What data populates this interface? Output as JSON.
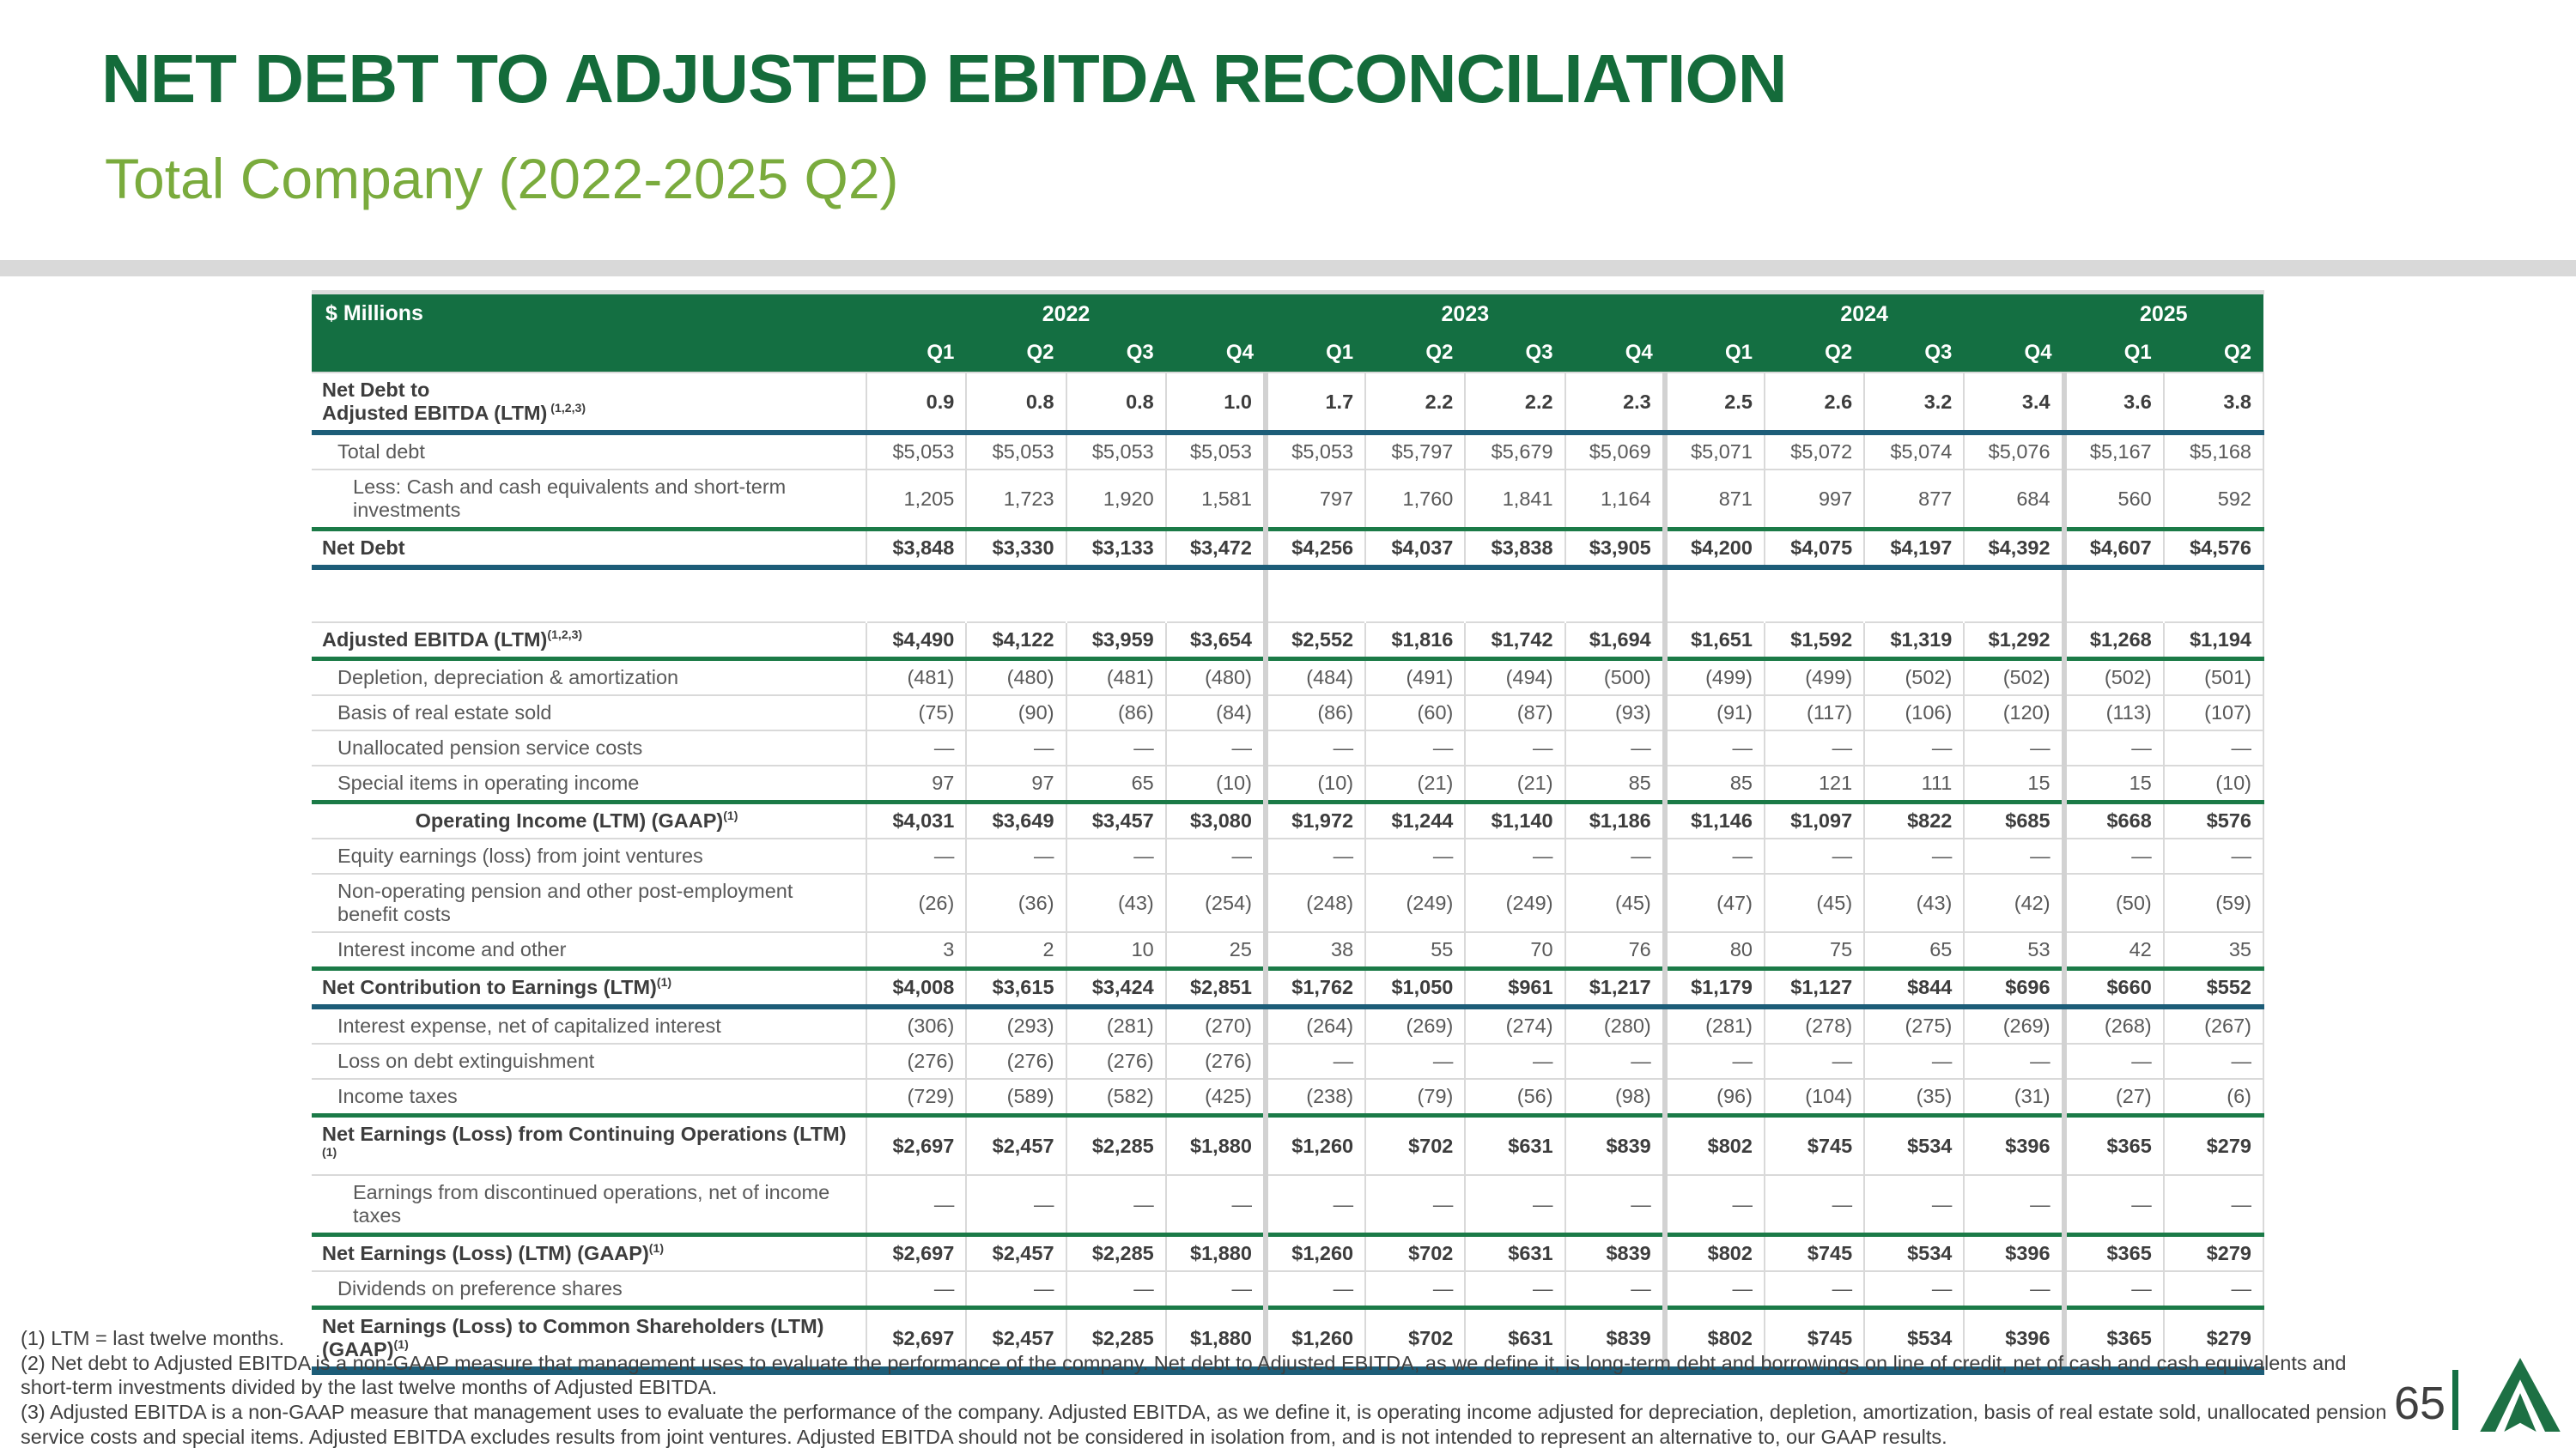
{
  "slide": {
    "title": "NET DEBT TO ADJUSTED EBITDA RECONCILIATION",
    "subtitle": "Total Company (2022-2025 Q2)",
    "page_number": "65"
  },
  "colors": {
    "title_green": "#146b3a",
    "subtitle_green": "#7aab3d",
    "header_green": "#146f42",
    "rule_green": "#1b7a47",
    "rule_teal": "#1d5d78",
    "grid_gray": "#d9d9d9",
    "divider_gray": "#d9d9d9",
    "logo_green": "#1d7044",
    "text_dark": "#3d3d3d",
    "text_gray": "#595959"
  },
  "table": {
    "units_label": "$ Millions",
    "year_groups": [
      {
        "label": "2022",
        "cols": 4
      },
      {
        "label": "2023",
        "cols": 4
      },
      {
        "label": "2024",
        "cols": 4
      },
      {
        "label": "2025",
        "cols": 2
      }
    ],
    "quarters": [
      "Q1",
      "Q2",
      "Q3",
      "Q4",
      "Q1",
      "Q2",
      "Q3",
      "Q4",
      "Q1",
      "Q2",
      "Q3",
      "Q4",
      "Q1",
      "Q2"
    ],
    "rows": [
      {
        "name": "row-net-debt-to-adjusted-ebitda",
        "lines": [
          "Net Debt to",
          "Adjusted EBITDA (LTM)"
        ],
        "sup": " (1,2,3)",
        "style": "bold",
        "indent": 0,
        "bb": "teal",
        "values": [
          "0.9",
          "0.8",
          "0.8",
          "1.0",
          "1.7",
          "2.2",
          "2.2",
          "2.3",
          "2.5",
          "2.6",
          "3.2",
          "3.4",
          "3.6",
          "3.8"
        ]
      },
      {
        "name": "row-total-debt",
        "lines": [
          "Total debt"
        ],
        "indent": 1,
        "values": [
          "$5,053",
          "$5,053",
          "$5,053",
          "$5,053",
          "$5,053",
          "$5,797",
          "$5,679",
          "$5,069",
          "$5,071",
          "$5,072",
          "$5,074",
          "$5,076",
          "$5,167",
          "$5,168"
        ]
      },
      {
        "name": "row-less-cash",
        "lines": [
          "Less: Cash and cash equivalents and short-term",
          "investments"
        ],
        "indent": 2,
        "values": [
          "1,205",
          "1,723",
          "1,920",
          "1,581",
          "797",
          "1,760",
          "1,841",
          "1,164",
          "871",
          "997",
          "877",
          "684",
          "560",
          "592"
        ]
      },
      {
        "name": "row-net-debt",
        "lines": [
          "Net Debt"
        ],
        "style": "bold",
        "indent": 0,
        "bt": "green",
        "bb": "teal",
        "values": [
          "$3,848",
          "$3,330",
          "$3,133",
          "$3,472",
          "$4,256",
          "$4,037",
          "$3,838",
          "$3,905",
          "$4,200",
          "$4,075",
          "$4,197",
          "$4,392",
          "$4,607",
          "$4,576"
        ]
      },
      {
        "name": "row-spacer",
        "spacer": true,
        "lines": [],
        "values": [
          "",
          "",
          "",
          "",
          "",
          "",
          "",
          "",
          "",
          "",
          "",
          "",
          "",
          ""
        ]
      },
      {
        "name": "row-adjusted-ebitda",
        "lines": [
          "Adjusted EBITDA (LTM)"
        ],
        "sup": "(1,2,3)",
        "style": "bold",
        "indent": 0,
        "bb": "green",
        "values": [
          "$4,490",
          "$4,122",
          "$3,959",
          "$3,654",
          "$2,552",
          "$1,816",
          "$1,742",
          "$1,694",
          "$1,651",
          "$1,592",
          "$1,319",
          "$1,292",
          "$1,268",
          "$1,194"
        ]
      },
      {
        "name": "row-depletion-depreciation-amortization",
        "lines": [
          "Depletion, depreciation & amortization"
        ],
        "indent": 1,
        "values": [
          "(481)",
          "(480)",
          "(481)",
          "(480)",
          "(484)",
          "(491)",
          "(494)",
          "(500)",
          "(499)",
          "(499)",
          "(502)",
          "(502)",
          "(502)",
          "(501)"
        ]
      },
      {
        "name": "row-basis-of-real-estate-sold",
        "lines": [
          "Basis of real estate sold"
        ],
        "indent": 1,
        "values": [
          "(75)",
          "(90)",
          "(86)",
          "(84)",
          "(86)",
          "(60)",
          "(87)",
          "(93)",
          "(91)",
          "(117)",
          "(106)",
          "(120)",
          "(113)",
          "(107)"
        ]
      },
      {
        "name": "row-unallocated-pension-service-costs",
        "lines": [
          "Unallocated pension service costs"
        ],
        "indent": 1,
        "values": [
          "—",
          "—",
          "—",
          "—",
          "—",
          "—",
          "—",
          "—",
          "—",
          "—",
          "—",
          "—",
          "—",
          "—"
        ]
      },
      {
        "name": "row-special-items",
        "lines": [
          "Special items in operating income"
        ],
        "indent": 1,
        "values": [
          "97",
          "97",
          "65",
          "(10)",
          "(10)",
          "(21)",
          "(21)",
          "85",
          "85",
          "121",
          "111",
          "15",
          "15",
          "(10)"
        ]
      },
      {
        "name": "row-operating-income",
        "lines": [
          "Operating Income (LTM) (GAAP)"
        ],
        "sup": "(1)",
        "style": "center",
        "indent": 0,
        "bt": "green",
        "values": [
          "$4,031",
          "$3,649",
          "$3,457",
          "$3,080",
          "$1,972",
          "$1,244",
          "$1,140",
          "$1,186",
          "$1,146",
          "$1,097",
          "$822",
          "$685",
          "$668",
          "$576"
        ]
      },
      {
        "name": "row-equity-earnings-joint-ventures",
        "lines": [
          "Equity earnings (loss) from joint ventures"
        ],
        "indent": 1,
        "values": [
          "—",
          "—",
          "—",
          "—",
          "—",
          "—",
          "—",
          "—",
          "—",
          "—",
          "—",
          "—",
          "—",
          "—"
        ]
      },
      {
        "name": "row-non-operating-pension",
        "lines": [
          "Non-operating pension and other post-employment",
          "benefit costs"
        ],
        "indent": 1,
        "values": [
          "(26)",
          "(36)",
          "(43)",
          "(254)",
          "(248)",
          "(249)",
          "(249)",
          "(45)",
          "(47)",
          "(45)",
          "(43)",
          "(42)",
          "(50)",
          "(59)"
        ]
      },
      {
        "name": "row-interest-income-and-other",
        "lines": [
          "Interest income and other"
        ],
        "indent": 1,
        "values": [
          "3",
          "2",
          "10",
          "25",
          "38",
          "55",
          "70",
          "76",
          "80",
          "75",
          "65",
          "53",
          "42",
          "35"
        ]
      },
      {
        "name": "row-net-contribution-to-earnings",
        "lines": [
          "Net Contribution to Earnings (LTM)"
        ],
        "sup": "(1)",
        "style": "bold",
        "indent": 0,
        "bt": "green",
        "bb": "teal",
        "values": [
          "$4,008",
          "$3,615",
          "$3,424",
          "$2,851",
          "$1,762",
          "$1,050",
          "$961",
          "$1,217",
          "$1,179",
          "$1,127",
          "$844",
          "$696",
          "$660",
          "$552"
        ]
      },
      {
        "name": "row-interest-expense",
        "lines": [
          "Interest expense, net of capitalized interest"
        ],
        "indent": 1,
        "values": [
          "(306)",
          "(293)",
          "(281)",
          "(270)",
          "(264)",
          "(269)",
          "(274)",
          "(280)",
          "(281)",
          "(278)",
          "(275)",
          "(269)",
          "(268)",
          "(267)"
        ]
      },
      {
        "name": "row-loss-on-debt-extinguishment",
        "lines": [
          "Loss on debt extinguishment"
        ],
        "indent": 1,
        "values": [
          "(276)",
          "(276)",
          "(276)",
          "(276)",
          "—",
          "—",
          "—",
          "—",
          "—",
          "—",
          "—",
          "—",
          "—",
          "—"
        ]
      },
      {
        "name": "row-income-taxes",
        "lines": [
          "Income taxes"
        ],
        "indent": 1,
        "values": [
          "(729)",
          "(589)",
          "(582)",
          "(425)",
          "(238)",
          "(79)",
          "(56)",
          "(98)",
          "(96)",
          "(104)",
          "(35)",
          "(31)",
          "(27)",
          "(6)"
        ]
      },
      {
        "name": "row-net-earnings-continuing-operations",
        "lines": [
          "Net Earnings (Loss) from Continuing Operations (LTM)"
        ],
        "sup": "(1)",
        "style": "bold",
        "indent": 0,
        "bt": "green",
        "values": [
          "$2,697",
          "$2,457",
          "$2,285",
          "$1,880",
          "$1,260",
          "$702",
          "$631",
          "$839",
          "$802",
          "$745",
          "$534",
          "$396",
          "$365",
          "$279"
        ]
      },
      {
        "name": "row-earnings-discontinued-operations",
        "lines": [
          "Earnings from discontinued operations, net of income",
          "taxes"
        ],
        "indent": 2,
        "values": [
          "—",
          "—",
          "—",
          "—",
          "—",
          "—",
          "—",
          "—",
          "—",
          "—",
          "—",
          "—",
          "—",
          "—"
        ]
      },
      {
        "name": "row-net-earnings-ltm-gaap",
        "lines": [
          "Net Earnings (Loss) (LTM) (GAAP)"
        ],
        "sup": "(1)",
        "style": "bold",
        "indent": 0,
        "bt": "green",
        "values": [
          "$2,697",
          "$2,457",
          "$2,285",
          "$1,880",
          "$1,260",
          "$702",
          "$631",
          "$839",
          "$802",
          "$745",
          "$534",
          "$396",
          "$365",
          "$279"
        ]
      },
      {
        "name": "row-dividends-on-preference-shares",
        "lines": [
          "Dividends on preference shares"
        ],
        "indent": 1,
        "values": [
          "—",
          "—",
          "—",
          "—",
          "—",
          "—",
          "—",
          "—",
          "—",
          "—",
          "—",
          "—",
          "—",
          "—"
        ]
      },
      {
        "name": "row-net-earnings-common-shareholders",
        "lines": [
          "Net Earnings (Loss) to Common Shareholders (LTM)",
          "(GAAP)"
        ],
        "sup": "(1)",
        "style": "bold",
        "indent": 0,
        "bt": "green",
        "bb": "tealthick",
        "values": [
          "$2,697",
          "$2,457",
          "$2,285",
          "$1,880",
          "$1,260",
          "$702",
          "$631",
          "$839",
          "$802",
          "$745",
          "$534",
          "$396",
          "$365",
          "$279"
        ]
      }
    ]
  },
  "footnotes": [
    "(1) LTM = last twelve months.",
    "(2) Net debt to Adjusted EBITDA is a non-GAAP measure that management uses to evaluate the performance of the company. Net debt to Adjusted EBITDA, as we define it, is long-term debt and borrowings on line of credit, net of cash and cash equivalents and short-term investments divided by the last twelve months of Adjusted EBITDA.",
    "(3) Adjusted EBITDA is a non-GAAP measure that management uses to evaluate the performance of the company. Adjusted EBITDA, as we define it, is operating income adjusted for depreciation, depletion, amortization, basis of real estate sold, unallocated pension service costs and special items. Adjusted EBITDA excludes results from joint ventures. Adjusted EBITDA should not be considered in isolation from, and is not intended to represent an alternative to, our GAAP results."
  ]
}
